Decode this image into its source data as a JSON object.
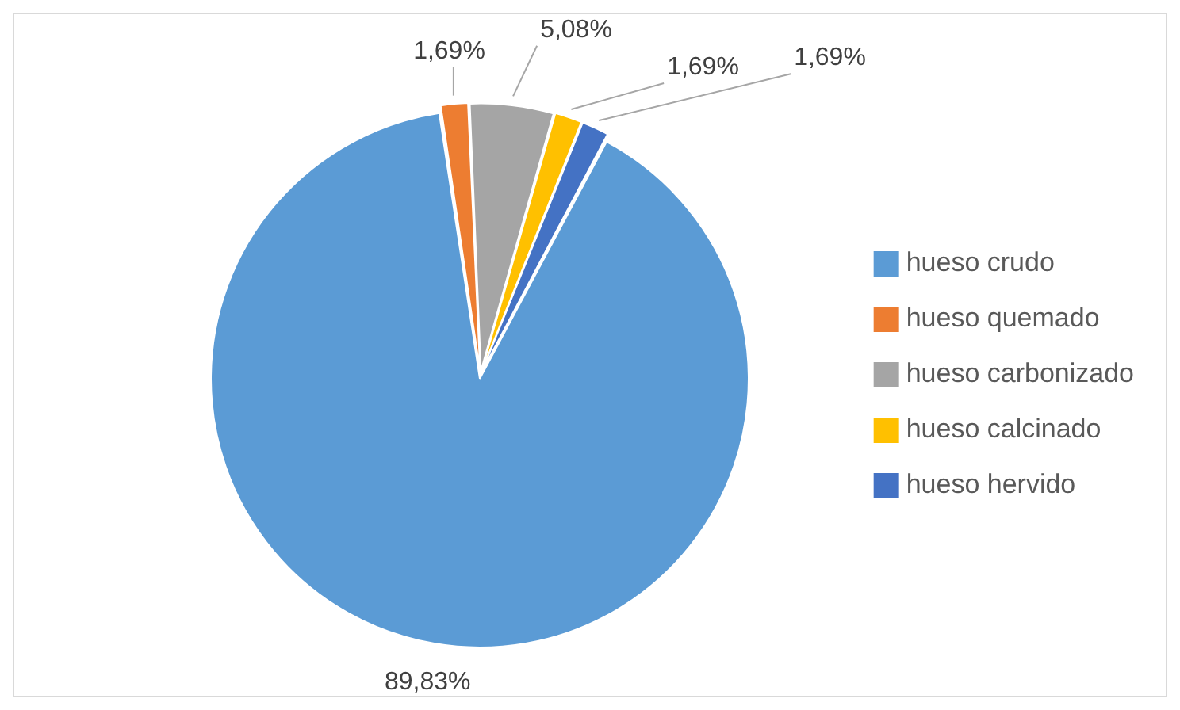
{
  "chart_data": {
    "type": "pie",
    "categories": [
      "hueso crudo",
      "hueso quemado",
      "hueso carbonizado",
      "hueso calcinado",
      "hueso hervido"
    ],
    "values": [
      89.83,
      1.69,
      5.08,
      1.69,
      1.69
    ],
    "colors": [
      "#5b9bd5",
      "#ed7d31",
      "#a5a5a5",
      "#ffc000",
      "#4472c4"
    ],
    "value_labels": [
      "89,83%",
      "1,69%",
      "5,08%",
      "1,69%",
      "1,69%"
    ],
    "legend": "right"
  }
}
